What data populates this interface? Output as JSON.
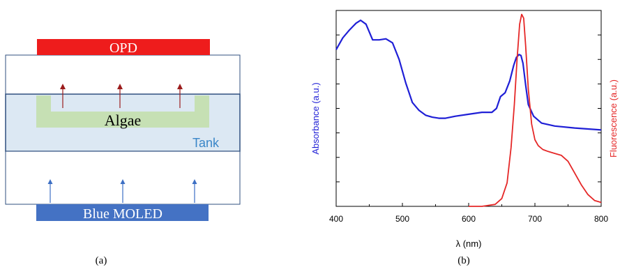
{
  "panel_a": {
    "opd_label": "OPD",
    "algae_label": "Algae",
    "tank_label": "Tank",
    "moled_label": "Blue MOLED",
    "caption": "(a)",
    "colors": {
      "opd_fill": "#ee1c1c",
      "tank_fill": "#dce8f3",
      "algae_fill": "#c6e0b4",
      "moled_fill": "#4472c4",
      "tank_text": "#3a86c8",
      "box_stroke": "#2f4f7f",
      "red_arrow": "#9b1c1c",
      "blue_arrow": "#3d6fc4"
    }
  },
  "panel_b": {
    "caption": "(b)",
    "chart_data": {
      "type": "line",
      "xlabel": "λ (nm)",
      "ylabel_left": "Absorbance (a.u.)",
      "ylabel_right": "Fluorescence (a.u.)",
      "xlim": [
        400,
        800
      ],
      "x_ticks": [
        400,
        500,
        600,
        700,
        800
      ],
      "series": [
        {
          "color": "#1f1fd6",
          "axis": "left",
          "x": [
            400,
            410,
            420,
            430,
            437,
            445,
            455,
            465,
            475,
            485,
            495,
            505,
            515,
            525,
            535,
            545,
            555,
            565,
            580,
            600,
            620,
            635,
            642,
            648,
            655,
            662,
            668,
            672,
            676,
            679,
            682,
            686,
            690,
            698,
            710,
            730,
            760,
            800
          ],
          "y": [
            0.8,
            0.86,
            0.9,
            0.935,
            0.95,
            0.93,
            0.85,
            0.85,
            0.855,
            0.835,
            0.75,
            0.63,
            0.53,
            0.49,
            0.465,
            0.455,
            0.45,
            0.45,
            0.46,
            0.47,
            0.48,
            0.48,
            0.5,
            0.56,
            0.58,
            0.64,
            0.72,
            0.76,
            0.775,
            0.77,
            0.73,
            0.62,
            0.52,
            0.46,
            0.425,
            0.41,
            0.4,
            0.39
          ]
        },
        {
          "color": "#e52727",
          "axis": "right",
          "x": [
            600,
            620,
            640,
            650,
            658,
            664,
            669,
            673,
            677,
            680,
            683,
            686,
            690,
            695,
            700,
            705,
            712,
            720,
            730,
            740,
            750,
            760,
            770,
            780,
            790,
            800
          ],
          "y": [
            0.0,
            0.0,
            0.01,
            0.04,
            0.12,
            0.3,
            0.52,
            0.75,
            0.93,
            0.98,
            0.96,
            0.82,
            0.6,
            0.42,
            0.34,
            0.31,
            0.29,
            0.28,
            0.27,
            0.26,
            0.23,
            0.17,
            0.11,
            0.06,
            0.03,
            0.02
          ]
        }
      ]
    }
  }
}
